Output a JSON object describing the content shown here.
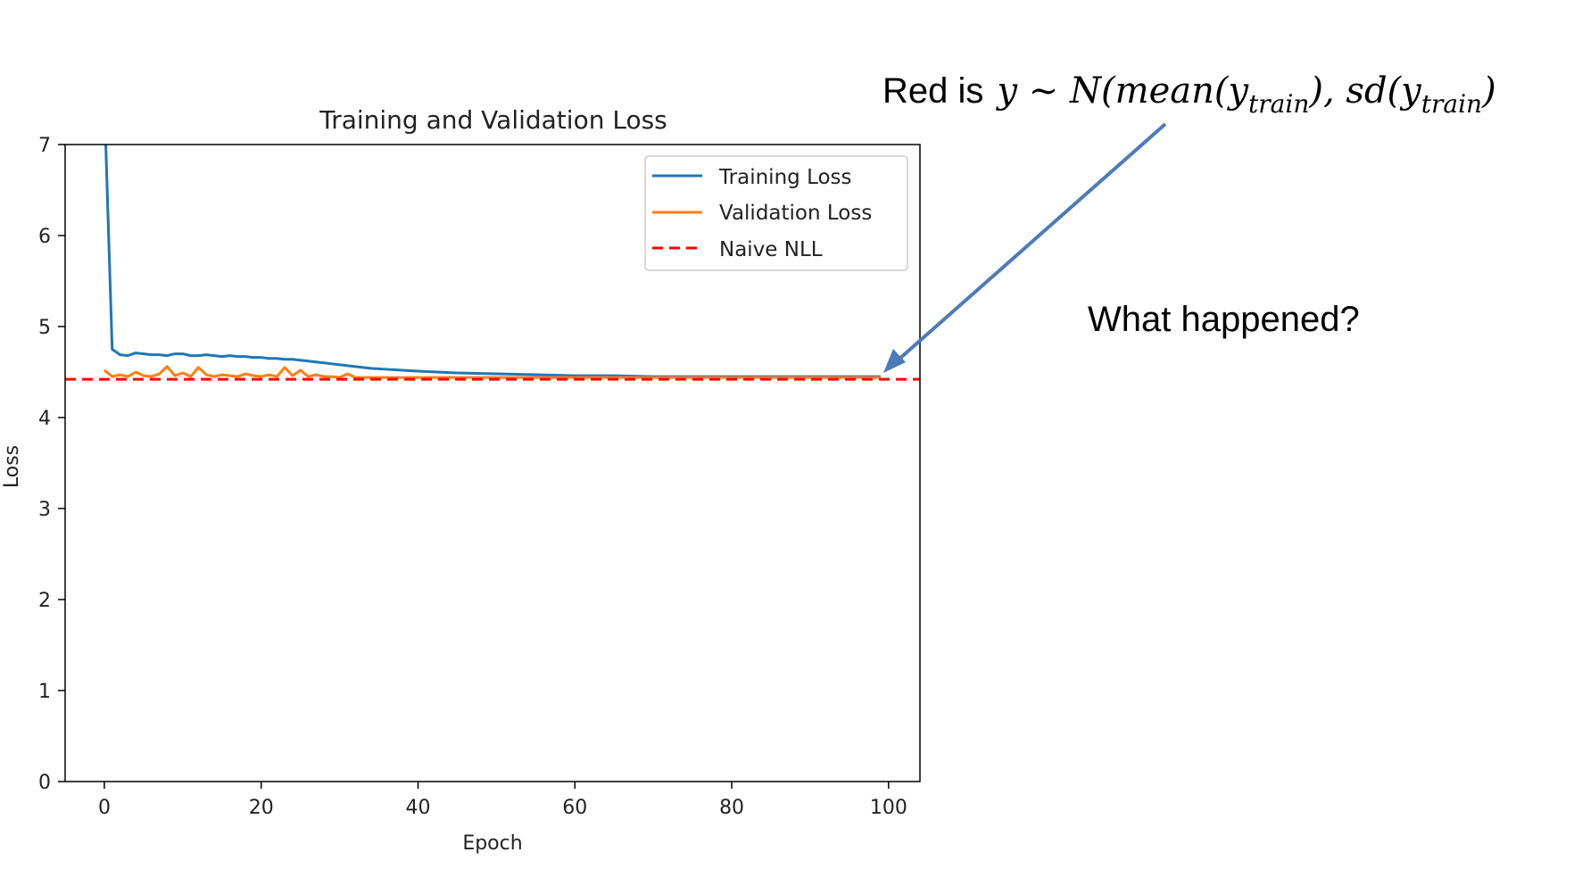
{
  "chart_data": {
    "type": "line",
    "title": "Training and Validation Loss",
    "xlabel": "Epoch",
    "ylabel": "Loss",
    "xlim": [
      -5,
      104
    ],
    "ylim": [
      0,
      7
    ],
    "xticks": [
      0,
      20,
      40,
      60,
      80,
      100
    ],
    "yticks": [
      0,
      1,
      2,
      3,
      4,
      5,
      6,
      7
    ],
    "legend_position": "top-right",
    "series": [
      {
        "name": "Training Loss",
        "color": "#1f77b4",
        "style": "solid",
        "x": [
          0,
          1,
          2,
          3,
          4,
          5,
          6,
          7,
          8,
          9,
          10,
          11,
          12,
          13,
          14,
          15,
          16,
          17,
          18,
          19,
          20,
          21,
          22,
          23,
          24,
          25,
          26,
          27,
          28,
          29,
          30,
          32,
          34,
          36,
          38,
          40,
          45,
          50,
          55,
          60,
          65,
          70,
          75,
          80,
          85,
          90,
          95,
          99
        ],
        "values": [
          7.5,
          4.75,
          4.69,
          4.68,
          4.71,
          4.7,
          4.69,
          4.69,
          4.68,
          4.7,
          4.7,
          4.68,
          4.68,
          4.69,
          4.68,
          4.67,
          4.68,
          4.67,
          4.67,
          4.66,
          4.66,
          4.65,
          4.65,
          4.64,
          4.64,
          4.63,
          4.62,
          4.61,
          4.6,
          4.59,
          4.58,
          4.56,
          4.54,
          4.53,
          4.52,
          4.51,
          4.49,
          4.48,
          4.47,
          4.46,
          4.46,
          4.45,
          4.45,
          4.45,
          4.45,
          4.45,
          4.45,
          4.45
        ]
      },
      {
        "name": "Validation Loss",
        "color": "#ff7f0e",
        "style": "solid",
        "x": [
          0,
          1,
          2,
          3,
          4,
          5,
          6,
          7,
          8,
          9,
          10,
          11,
          12,
          13,
          14,
          15,
          16,
          17,
          18,
          19,
          20,
          21,
          22,
          23,
          24,
          25,
          26,
          27,
          28,
          29,
          30,
          31,
          32,
          34,
          36,
          40,
          45,
          50,
          55,
          60,
          70,
          80,
          90,
          99
        ],
        "values": [
          4.52,
          4.45,
          4.47,
          4.45,
          4.5,
          4.46,
          4.45,
          4.48,
          4.56,
          4.46,
          4.49,
          4.45,
          4.55,
          4.47,
          4.45,
          4.47,
          4.46,
          4.45,
          4.48,
          4.46,
          4.45,
          4.47,
          4.45,
          4.55,
          4.46,
          4.52,
          4.45,
          4.47,
          4.45,
          4.45,
          4.44,
          4.48,
          4.44,
          4.44,
          4.44,
          4.44,
          4.44,
          4.44,
          4.44,
          4.44,
          4.44,
          4.44,
          4.44,
          4.44
        ]
      },
      {
        "name": "Naive NLL",
        "color": "#ff0000",
        "style": "dashed",
        "x": [
          -5,
          104
        ],
        "values": [
          4.42,
          4.42
        ]
      }
    ]
  },
  "annotation": {
    "prefix": "Red is",
    "math": "y ∼ N(mean(y",
    "sub1": "train",
    "mid": "), sd(y",
    "sub2": "train",
    "end": ")",
    "arrow_color": "#4f7ab8",
    "question": "What happened?"
  }
}
